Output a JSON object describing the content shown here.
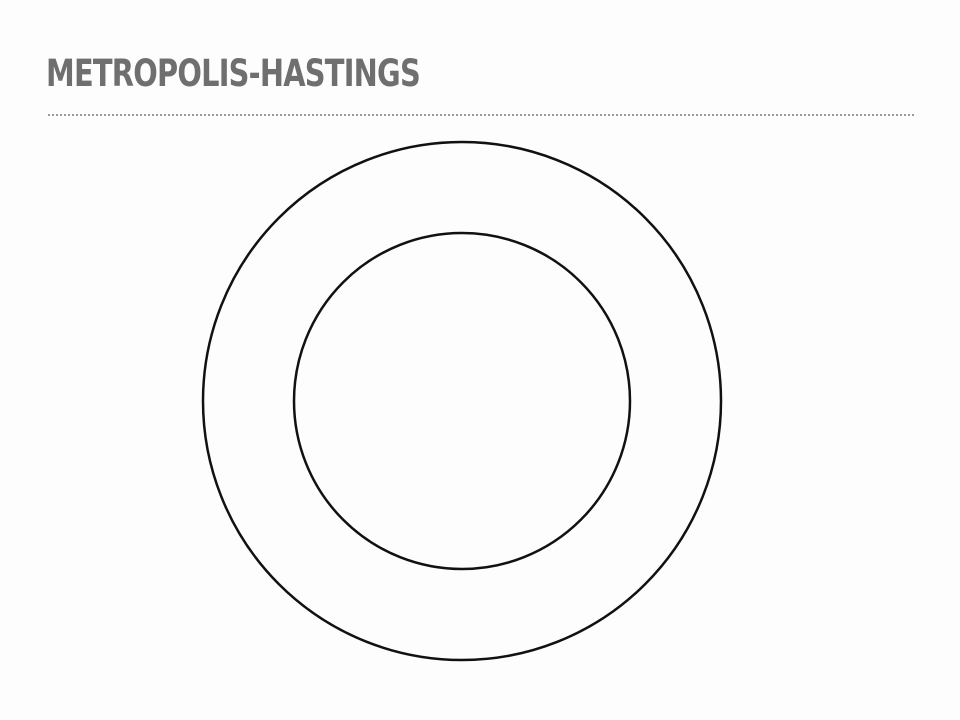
{
  "slide": {
    "title": "METROPOLIS-HASTINGS"
  },
  "diagram": {
    "shapes": [
      "outer-circle",
      "inner-circle"
    ],
    "stroke_color": "#111111",
    "fill_color": "none"
  }
}
